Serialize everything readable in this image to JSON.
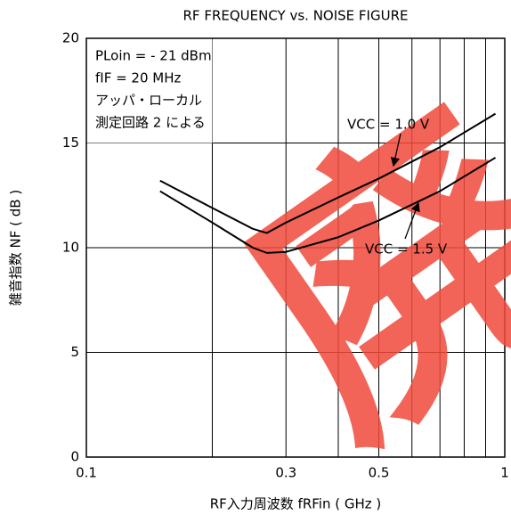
{
  "chart_data": {
    "type": "line",
    "title": "RF FREQUENCY vs. NOISE FIGURE",
    "x_label": "RF入力周波数 fRFin ( GHz )",
    "y_label": "雑音指数 NF ( dB )",
    "annotations": [
      "PLoin =  - 21 dBm",
      "fIF = 20 MHz",
      "アッパ・ローカル",
      "測定回路 2 による"
    ],
    "watermark": "廃",
    "x_scale": "log",
    "xlim": [
      0.1,
      1
    ],
    "xticks": [
      0.1,
      0.3,
      0.5,
      1
    ],
    "x_minor_gridlines": [
      0.2,
      0.4,
      0.6,
      0.7,
      0.8,
      0.9
    ],
    "ylim": [
      0,
      20
    ],
    "yticks": [
      0,
      5,
      10,
      15,
      20
    ],
    "grid": true,
    "series": [
      {
        "name": "VCC = 1.0 V",
        "color": "#000000",
        "x": [
          0.15,
          0.2,
          0.25,
          0.27,
          0.3,
          0.4,
          0.5,
          0.7,
          0.95
        ],
        "values": [
          13.2,
          11.9,
          10.9,
          10.7,
          11.2,
          12.4,
          13.3,
          14.8,
          16.4
        ]
      },
      {
        "name": "VCC = 1.5 V",
        "color": "#000000",
        "x": [
          0.15,
          0.2,
          0.25,
          0.27,
          0.3,
          0.4,
          0.5,
          0.7,
          0.95
        ],
        "values": [
          12.7,
          11.2,
          10.0,
          9.75,
          9.8,
          10.5,
          11.3,
          12.7,
          14.3
        ]
      }
    ]
  }
}
